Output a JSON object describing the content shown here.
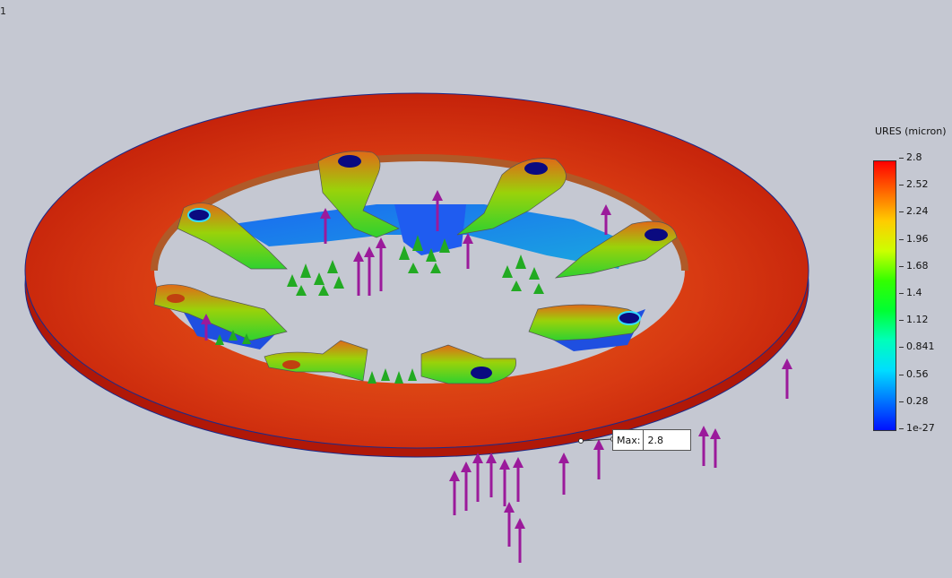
{
  "corner_label": "1",
  "legend": {
    "title": "URES (micron)",
    "ticks": [
      "2.8",
      "2.52",
      "2.24",
      "1.96",
      "1.68",
      "1.4",
      "1.12",
      "0.841",
      "0.56",
      "0.28",
      "1e-27"
    ],
    "colors": [
      "#ff0000",
      "#ff6600",
      "#ffcc00",
      "#ccff00",
      "#33ff00",
      "#00ff33",
      "#00ffbb",
      "#00ddff",
      "#0077ff",
      "#0011ff"
    ]
  },
  "probe": {
    "label": "Max:",
    "value": "2.8"
  },
  "model": {
    "rim_color": "#cc2a10",
    "load_arrow_color": "#9b1a9b",
    "fixture_color": "#22aa22"
  }
}
